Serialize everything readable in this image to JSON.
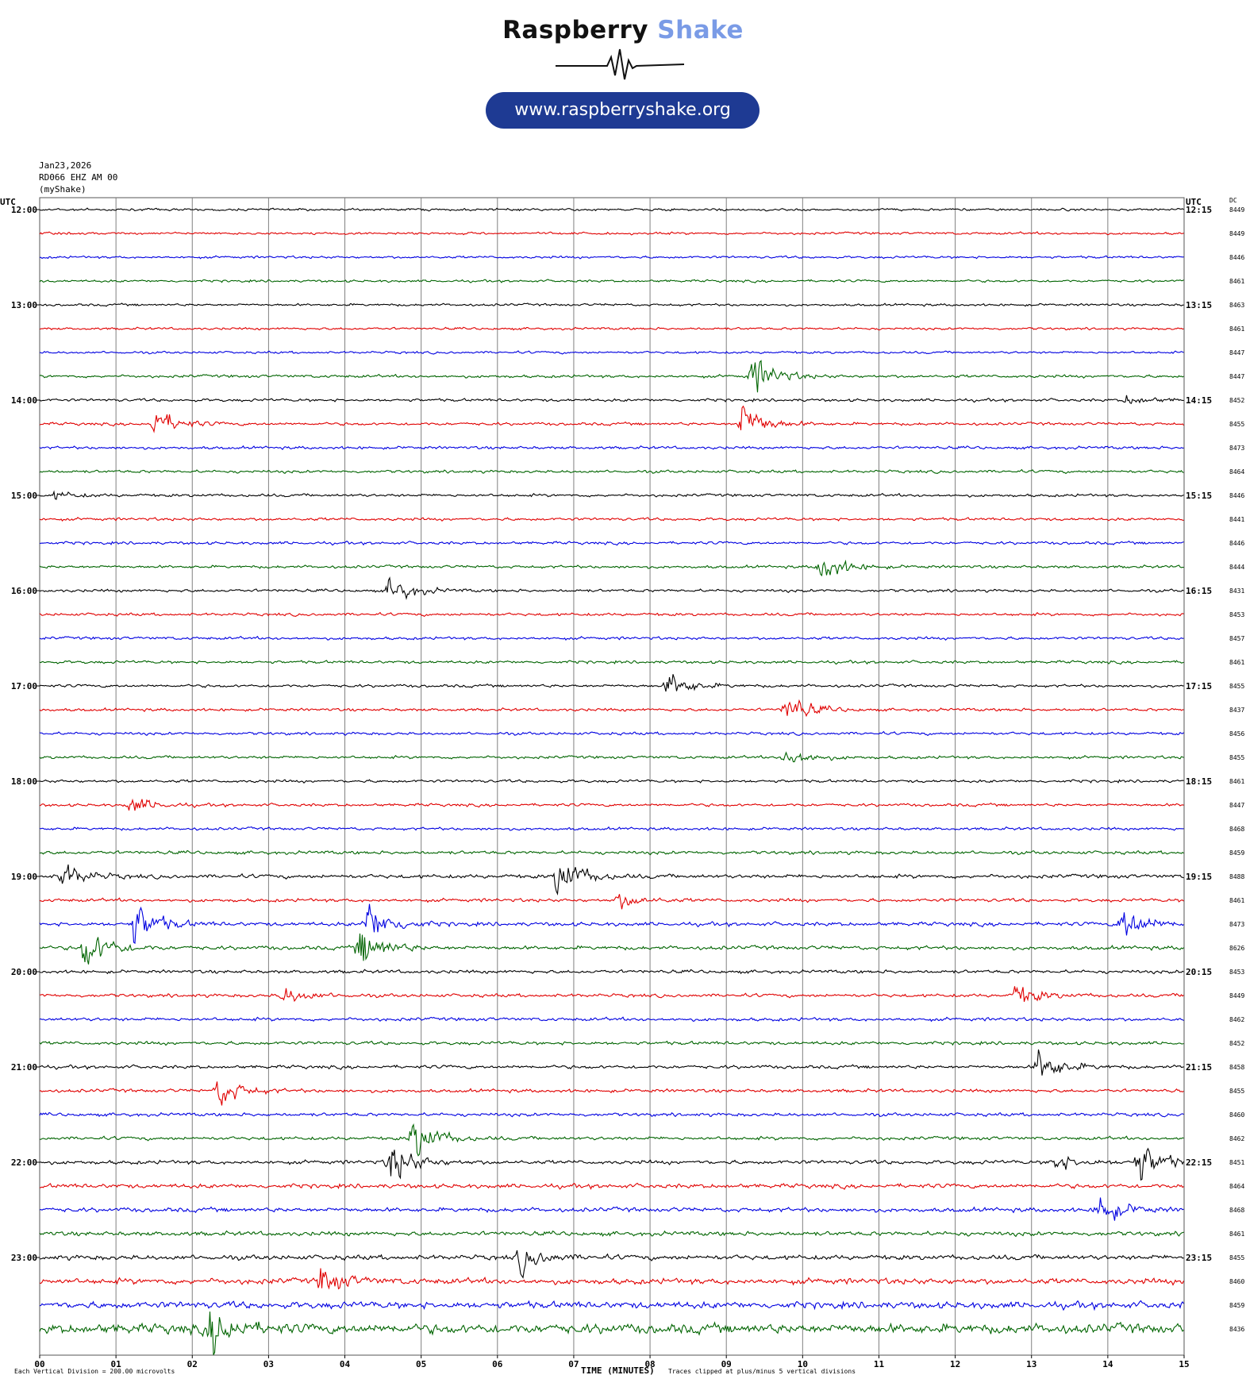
{
  "logo": {
    "word1": "Raspberry",
    "word2": "Shake",
    "url": "www.raspberryshake.org"
  },
  "header": {
    "date": "Jan23,2026",
    "station": "RD066 EHZ AM 00",
    "network": "(myShake)"
  },
  "labels": {
    "utc_left": "UTC",
    "utc_right": "UTC",
    "dc": "DC",
    "xlabel": "TIME (MINUTES)",
    "footer_left": "Each Vertical Division =  200.00 microvolts",
    "footer_right": "Traces clipped at plus/minus 5 vertical divisions"
  },
  "colors": {
    "cycle": [
      "#000000",
      "#e00000",
      "#0000e0",
      "#006400"
    ],
    "grid": "#808080"
  },
  "chart_data": {
    "type": "line",
    "title": "",
    "xlabel": "TIME (MINUTES)",
    "xlim": [
      0,
      15
    ],
    "x_ticks": [
      "00",
      "01",
      "02",
      "03",
      "04",
      "05",
      "06",
      "07",
      "08",
      "09",
      "10",
      "11",
      "12",
      "13",
      "14",
      "15"
    ],
    "left_hour_labels": [
      "12:00",
      "13:00",
      "14:00",
      "15:00",
      "16:00",
      "17:00",
      "18:00",
      "19:00",
      "20:00",
      "21:00",
      "22:00",
      "23:00"
    ],
    "right_hour_labels": [
      "12:15",
      "13:15",
      "14:15",
      "15:15",
      "16:15",
      "17:15",
      "18:15",
      "19:15",
      "20:15",
      "21:15",
      "22:15",
      "23:15"
    ],
    "dc_values": [
      "8449",
      "8449",
      "8446",
      "8461",
      "8463",
      "8461",
      "8447",
      "8447",
      "8452",
      "8455",
      "8473",
      "8464",
      "8446",
      "8441",
      "8446",
      "8444",
      "8431",
      "8453",
      "8457",
      "8461",
      "8455",
      "8437",
      "8456",
      "8455",
      "8461",
      "8447",
      "8468",
      "8459",
      "8488",
      "8461",
      "8473",
      "8626",
      "8453",
      "8449",
      "8462",
      "8452",
      "8458",
      "8455",
      "8460",
      "8462",
      "8451",
      "8464",
      "8468",
      "8461",
      "8455",
      "8460",
      "8459",
      "8436"
    ],
    "rows_per_hour": 4,
    "minutes_per_row": 15,
    "noise": [
      0.25,
      0.25,
      0.25,
      0.25,
      0.25,
      0.25,
      0.25,
      0.3,
      0.3,
      0.3,
      0.3,
      0.3,
      0.3,
      0.3,
      0.3,
      0.3,
      0.3,
      0.3,
      0.3,
      0.3,
      0.3,
      0.3,
      0.3,
      0.3,
      0.3,
      0.3,
      0.3,
      0.35,
      0.4,
      0.35,
      0.4,
      0.4,
      0.35,
      0.35,
      0.35,
      0.35,
      0.35,
      0.35,
      0.35,
      0.35,
      0.4,
      0.45,
      0.45,
      0.45,
      0.5,
      0.6,
      0.7,
      1.0
    ],
    "events": [
      {
        "row": 7,
        "minute": 9.35,
        "amp": 4.5
      },
      {
        "row": 8,
        "minute": 14.25,
        "amp": 1.1
      },
      {
        "row": 9,
        "minute": 1.5,
        "amp": 3.5
      },
      {
        "row": 9,
        "minute": 9.2,
        "amp": 5
      },
      {
        "row": 12,
        "minute": 0.2,
        "amp": 0.8
      },
      {
        "row": 15,
        "minute": 10.25,
        "amp": 3.5
      },
      {
        "row": 16,
        "minute": 4.6,
        "amp": 3
      },
      {
        "row": 20,
        "minute": 8.25,
        "amp": 3
      },
      {
        "row": 21,
        "minute": 9.8,
        "amp": 3.5
      },
      {
        "row": 23,
        "minute": 9.8,
        "amp": 2.5
      },
      {
        "row": 25,
        "minute": 1.2,
        "amp": 2
      },
      {
        "row": 28,
        "minute": 0.3,
        "amp": 3
      },
      {
        "row": 28,
        "minute": 6.8,
        "amp": 5
      },
      {
        "row": 29,
        "minute": 7.6,
        "amp": 1.8
      },
      {
        "row": 30,
        "minute": 1.25,
        "amp": 5
      },
      {
        "row": 30,
        "minute": 4.3,
        "amp": 5
      },
      {
        "row": 30,
        "minute": 14.2,
        "amp": 4.5
      },
      {
        "row": 31,
        "minute": 0.6,
        "amp": 5
      },
      {
        "row": 31,
        "minute": 4.2,
        "amp": 5
      },
      {
        "row": 33,
        "minute": 3.2,
        "amp": 2
      },
      {
        "row": 33,
        "minute": 12.8,
        "amp": 2.5
      },
      {
        "row": 36,
        "minute": 13.1,
        "amp": 4
      },
      {
        "row": 37,
        "minute": 2.35,
        "amp": 3.5
      },
      {
        "row": 39,
        "minute": 4.9,
        "amp": 5
      },
      {
        "row": 40,
        "minute": 4.6,
        "amp": 5
      },
      {
        "row": 40,
        "minute": 14.4,
        "amp": 5
      },
      {
        "row": 40,
        "minute": 13.3,
        "amp": 2
      },
      {
        "row": 42,
        "minute": 13.9,
        "amp": 3.5
      },
      {
        "row": 44,
        "minute": 6.3,
        "amp": 3
      },
      {
        "row": 45,
        "minute": 3.7,
        "amp": 3
      },
      {
        "row": 47,
        "minute": 2.25,
        "amp": 5
      }
    ]
  }
}
